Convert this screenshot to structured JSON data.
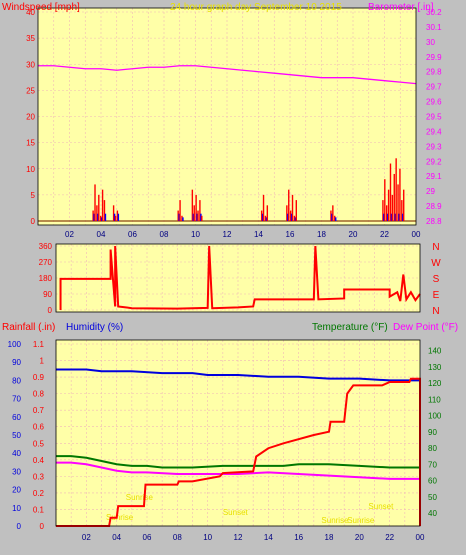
{
  "title": "24 hour graph day   September 10 2015",
  "colors": {
    "background": "#c0c0c0",
    "plot_bg": "#ffffa8",
    "grid": "#f0b8b8",
    "wind": "#ff0000",
    "barometer": "#ff00ff",
    "humidity": "#0000dd",
    "temperature": "#007700",
    "dewpoint": "#ff00ff",
    "rain": "#ff0000",
    "sun_label": "#e8e000"
  },
  "x_ticks": [
    "02",
    "04",
    "06",
    "08",
    "10",
    "12",
    "14",
    "16",
    "18",
    "20",
    "22",
    "00"
  ],
  "sun_labels": [
    "Sunrise",
    "Sunrise",
    "Sunset",
    "Sunset",
    "Sunrise",
    "Sunrise"
  ],
  "chart_data": [
    {
      "type": "line",
      "title": "24 hour graph day   September 10 2015",
      "left_axis": {
        "label": "Windspeed [mph]",
        "ylim": [
          0,
          40
        ],
        "ticks": [
          "0",
          "5",
          "10",
          "15",
          "20",
          "25",
          "30",
          "35",
          "40"
        ]
      },
      "right_axis": {
        "label": "Barometer [.in]",
        "ylim": [
          28.8,
          30.2
        ],
        "ticks": [
          "28.8",
          "28.9",
          "29",
          "29.1",
          "29.2",
          "29.3",
          "29.4",
          "29.5",
          "29.6",
          "29.7",
          "29.8",
          "29.9",
          "30",
          "30.1",
          "30.2"
        ]
      },
      "x": [
        0,
        1,
        2,
        3,
        4,
        5,
        6,
        7,
        8,
        9,
        10,
        11,
        12,
        13,
        14,
        15,
        16,
        17,
        18,
        19,
        20,
        21,
        22,
        23,
        24
      ],
      "series": [
        {
          "name": "Barometer [.in]",
          "axis": "right",
          "values": [
            29.84,
            29.84,
            29.83,
            29.82,
            29.82,
            29.81,
            29.82,
            29.83,
            29.83,
            29.84,
            29.84,
            29.83,
            29.82,
            29.81,
            29.8,
            29.79,
            29.78,
            29.77,
            29.76,
            29.76,
            29.76,
            29.75,
            29.74,
            29.73,
            29.72
          ]
        }
      ],
      "wind_gust_bursts": [
        {
          "x": 3.5,
          "values": [
            2,
            7,
            3,
            5,
            1,
            6,
            4
          ]
        },
        {
          "x": 4.8,
          "values": [
            3,
            1,
            2
          ]
        },
        {
          "x": 8.9,
          "values": [
            2,
            4,
            1
          ]
        },
        {
          "x": 9.8,
          "values": [
            6,
            3,
            5,
            2,
            4,
            1
          ]
        },
        {
          "x": 14.2,
          "values": [
            2,
            5,
            1,
            3
          ]
        },
        {
          "x": 15.8,
          "values": [
            3,
            6,
            2,
            5,
            1,
            4
          ]
        },
        {
          "x": 18.6,
          "values": [
            2,
            3,
            1
          ]
        },
        {
          "x": 21.9,
          "values": [
            4,
            8,
            3,
            6,
            11,
            5,
            9,
            12,
            7,
            10,
            4,
            6
          ]
        }
      ]
    },
    {
      "type": "line",
      "left_axis": {
        "ylim": [
          0,
          360
        ],
        "ticks": [
          "0",
          "90",
          "180",
          "270",
          "360"
        ]
      },
      "right_axis": {
        "ticks": [
          "N",
          "E",
          "S",
          "W",
          "N"
        ]
      },
      "series": [
        {
          "name": "Wind Direction",
          "points": [
            [
              0.3,
              0
            ],
            [
              0.3,
              175
            ],
            [
              2.7,
              175
            ],
            [
              2.7,
              175
            ],
            [
              3.6,
              175
            ],
            [
              3.6,
              340
            ],
            [
              3.9,
              20
            ],
            [
              3.9,
              360
            ],
            [
              4.1,
              20
            ],
            [
              4.6,
              15
            ],
            [
              5.0,
              10
            ],
            [
              8.0,
              8
            ],
            [
              10.0,
              12
            ],
            [
              10.1,
              360
            ],
            [
              10.3,
              10
            ],
            [
              12.0,
              15
            ],
            [
              13.0,
              20
            ],
            [
              13.1,
              60
            ],
            [
              17.0,
              60
            ],
            [
              17.1,
              360
            ],
            [
              17.3,
              60
            ],
            [
              19.0,
              65
            ],
            [
              19.0,
              115
            ],
            [
              22.0,
              115
            ],
            [
              22.0,
              75
            ],
            [
              22.5,
              100
            ],
            [
              22.7,
              50
            ],
            [
              22.9,
              200
            ],
            [
              23.1,
              60
            ],
            [
              23.4,
              100
            ],
            [
              23.7,
              55
            ],
            [
              24.0,
              90
            ]
          ]
        }
      ]
    },
    {
      "type": "line",
      "title": "",
      "axes_labels": {
        "rain": "Rainfall (.in)",
        "humidity": "Humidity (%)",
        "temperature": "Temperature (°F)",
        "dewpoint": "Dew Point (°F)"
      },
      "rain_axis": {
        "ylim": [
          0,
          1.1
        ],
        "ticks": [
          "0",
          "0.1",
          "0.2",
          "0.3",
          "0.4",
          "0.5",
          "0.6",
          "0.7",
          "0.8",
          "0.9",
          "1",
          "1.1"
        ]
      },
      "humidity_axis": {
        "ylim": [
          0,
          100
        ],
        "ticks": [
          "0",
          "10",
          "20",
          "30",
          "40",
          "50",
          "60",
          "70",
          "80",
          "90",
          "100"
        ]
      },
      "temperature_axis": {
        "ylim": [
          32,
          144
        ],
        "ticks": [
          "40",
          "50",
          "60",
          "70",
          "80",
          "90",
          "100",
          "110",
          "120",
          "130",
          "140"
        ]
      },
      "series": [
        {
          "name": "Humidity (%)",
          "points": [
            [
              0,
              86
            ],
            [
              2,
              86
            ],
            [
              3,
              85
            ],
            [
              5,
              85
            ],
            [
              7,
              84
            ],
            [
              9,
              84
            ],
            [
              10,
              83
            ],
            [
              12,
              83
            ],
            [
              14,
              82
            ],
            [
              16,
              82
            ],
            [
              18,
              81
            ],
            [
              20,
              81
            ],
            [
              22,
              80
            ],
            [
              24,
              80
            ]
          ]
        },
        {
          "name": "Temperature (°F)",
          "points": [
            [
              0,
              75
            ],
            [
              1,
              75
            ],
            [
              2,
              74
            ],
            [
              3,
              72
            ],
            [
              4,
              70
            ],
            [
              5,
              69
            ],
            [
              6,
              69
            ],
            [
              7,
              68
            ],
            [
              9,
              68
            ],
            [
              11,
              69
            ],
            [
              13,
              69
            ],
            [
              15,
              69
            ],
            [
              16,
              70
            ],
            [
              18,
              70
            ],
            [
              20,
              69
            ],
            [
              22,
              68
            ],
            [
              24,
              68
            ]
          ]
        },
        {
          "name": "Dew Point (°F)",
          "points": [
            [
              0,
              71
            ],
            [
              1,
              71
            ],
            [
              2,
              70
            ],
            [
              3,
              68
            ],
            [
              4,
              66
            ],
            [
              5,
              65
            ],
            [
              6,
              65
            ],
            [
              8,
              64
            ],
            [
              10,
              64
            ],
            [
              12,
              64
            ],
            [
              14,
              65
            ],
            [
              16,
              64
            ],
            [
              18,
              63
            ],
            [
              20,
              62
            ],
            [
              22,
              61
            ],
            [
              24,
              61
            ]
          ]
        },
        {
          "name": "Rainfall (.in)",
          "points": [
            [
              0,
              0
            ],
            [
              3.5,
              0
            ],
            [
              3.6,
              0.05
            ],
            [
              4.0,
              0.05
            ],
            [
              4.1,
              0.12
            ],
            [
              5.8,
              0.12
            ],
            [
              5.9,
              0.25
            ],
            [
              8.0,
              0.25
            ],
            [
              8.1,
              0.27
            ],
            [
              9.0,
              0.27
            ],
            [
              10.8,
              0.3
            ],
            [
              11.0,
              0.32
            ],
            [
              13.0,
              0.33
            ],
            [
              13.2,
              0.42
            ],
            [
              14.0,
              0.47
            ],
            [
              15.0,
              0.5
            ],
            [
              17.0,
              0.55
            ],
            [
              18.0,
              0.57
            ],
            [
              18.1,
              0.63
            ],
            [
              19.0,
              0.63
            ],
            [
              19.2,
              0.8
            ],
            [
              19.6,
              0.85
            ],
            [
              21.5,
              0.85
            ],
            [
              22.0,
              0.87
            ],
            [
              23.3,
              0.87
            ],
            [
              23.4,
              0.89
            ],
            [
              24,
              0.89
            ],
            [
              24,
              0
            ]
          ]
        }
      ]
    }
  ]
}
